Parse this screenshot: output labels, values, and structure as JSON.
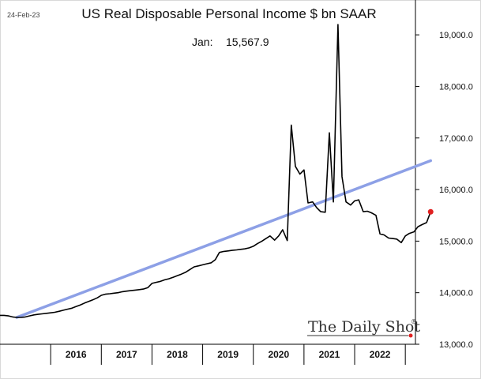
{
  "date_stamp": "24-Feb-23",
  "brand": {
    "name": "The Daily Shot",
    "mark": "®",
    "dot_color": "#e02020"
  },
  "annotation": {
    "label": "Jan:",
    "value": "15,567.9"
  },
  "colors": {
    "series": "#000000",
    "trend": "#8da0e6",
    "last_point": "#e02020",
    "axis": "#000000"
  },
  "chart_data": {
    "type": "line",
    "title": "US Real Disposable Personal Income $ bn SAAR",
    "xlabel": "",
    "ylabel": "",
    "x_range": [
      2015.0,
      2023.2
    ],
    "ylim": [
      13000,
      19400
    ],
    "y_ticks": [
      13000,
      14000,
      15000,
      16000,
      17000,
      18000,
      19000
    ],
    "y_tick_labels": [
      "13,000.0",
      "14,000.0",
      "15,000.0",
      "16,000.0",
      "17,000.0",
      "18,000.0",
      "19,000.0"
    ],
    "x_categories": [
      "2016",
      "2017",
      "2018",
      "2019",
      "2020",
      "2021",
      "2022"
    ],
    "grid": false,
    "series": [
      {
        "values": [
          [
            2015.0,
            13560
          ],
          [
            2015.08,
            13560
          ],
          [
            2015.17,
            13550
          ],
          [
            2015.25,
            13530
          ],
          [
            2015.33,
            13520
          ],
          [
            2015.42,
            13520
          ],
          [
            2015.5,
            13530
          ],
          [
            2015.58,
            13550
          ],
          [
            2015.67,
            13570
          ],
          [
            2015.75,
            13580
          ],
          [
            2015.83,
            13590
          ],
          [
            2015.92,
            13600
          ],
          [
            2016.0,
            13610
          ],
          [
            2016.08,
            13620
          ],
          [
            2016.17,
            13640
          ],
          [
            2016.25,
            13660
          ],
          [
            2016.33,
            13680
          ],
          [
            2016.42,
            13700
          ],
          [
            2016.5,
            13730
          ],
          [
            2016.58,
            13760
          ],
          [
            2016.67,
            13800
          ],
          [
            2016.75,
            13830
          ],
          [
            2016.83,
            13860
          ],
          [
            2016.92,
            13900
          ],
          [
            2017.0,
            13950
          ],
          [
            2017.08,
            13970
          ],
          [
            2017.17,
            13980
          ],
          [
            2017.25,
            13990
          ],
          [
            2017.33,
            14000
          ],
          [
            2017.42,
            14020
          ],
          [
            2017.5,
            14030
          ],
          [
            2017.58,
            14040
          ],
          [
            2017.67,
            14050
          ],
          [
            2017.75,
            14060
          ],
          [
            2017.83,
            14070
          ],
          [
            2017.92,
            14100
          ],
          [
            2018.0,
            14180
          ],
          [
            2018.08,
            14200
          ],
          [
            2018.17,
            14220
          ],
          [
            2018.25,
            14250
          ],
          [
            2018.33,
            14270
          ],
          [
            2018.42,
            14300
          ],
          [
            2018.5,
            14330
          ],
          [
            2018.58,
            14360
          ],
          [
            2018.67,
            14400
          ],
          [
            2018.75,
            14450
          ],
          [
            2018.83,
            14500
          ],
          [
            2018.92,
            14520
          ],
          [
            2019.0,
            14540
          ],
          [
            2019.08,
            14560
          ],
          [
            2019.17,
            14580
          ],
          [
            2019.25,
            14640
          ],
          [
            2019.33,
            14780
          ],
          [
            2019.42,
            14800
          ],
          [
            2019.5,
            14810
          ],
          [
            2019.58,
            14820
          ],
          [
            2019.67,
            14830
          ],
          [
            2019.75,
            14840
          ],
          [
            2019.83,
            14850
          ],
          [
            2019.92,
            14870
          ],
          [
            2020.0,
            14900
          ],
          [
            2020.08,
            14950
          ],
          [
            2020.17,
            15000
          ],
          [
            2020.25,
            15050
          ],
          [
            2020.33,
            15100
          ],
          [
            2020.42,
            15020
          ],
          [
            2020.5,
            15100
          ],
          [
            2020.58,
            15220
          ],
          [
            2020.67,
            15010
          ],
          [
            2020.75,
            17250
          ],
          [
            2020.83,
            16450
          ],
          [
            2020.92,
            16300
          ],
          [
            2021.0,
            16380
          ],
          [
            2021.08,
            15740
          ],
          [
            2021.17,
            15760
          ],
          [
            2021.25,
            15650
          ],
          [
            2021.33,
            15570
          ],
          [
            2021.42,
            15560
          ],
          [
            2021.5,
            17100
          ],
          [
            2021.58,
            15760
          ],
          [
            2021.67,
            19200
          ],
          [
            2021.75,
            16250
          ],
          [
            2021.83,
            15760
          ],
          [
            2021.92,
            15700
          ],
          [
            2022.0,
            15780
          ],
          [
            2022.08,
            15800
          ],
          [
            2022.17,
            15570
          ],
          [
            2022.25,
            15580
          ],
          [
            2022.33,
            15550
          ],
          [
            2022.42,
            15500
          ],
          [
            2022.5,
            15140
          ],
          [
            2022.58,
            15120
          ],
          [
            2022.67,
            15060
          ],
          [
            2022.75,
            15050
          ],
          [
            2022.83,
            15040
          ],
          [
            2022.92,
            14970
          ],
          [
            2023.0,
            15100
          ],
          [
            2023.08,
            15150
          ],
          [
            2023.17,
            15180
          ],
          [
            2023.25,
            15280
          ],
          [
            2023.33,
            15320
          ],
          [
            2023.42,
            15360
          ],
          [
            2023.5,
            15568
          ]
        ]
      }
    ],
    "trend_line": [
      [
        2015.33,
        13520
      ],
      [
        2023.5,
        16560
      ]
    ],
    "last_point": [
      2023.5,
      15567.9
    ]
  }
}
